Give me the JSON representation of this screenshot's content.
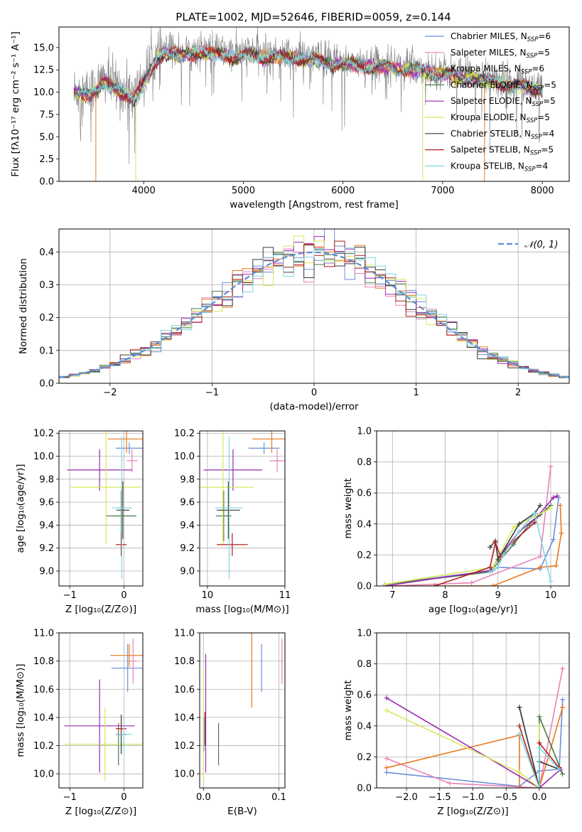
{
  "figure": {
    "title": "PLATE=1002, MJD=52646, FIBERID=0059, z=0.144"
  },
  "chart_data": [
    {
      "id": "spectrum",
      "type": "line",
      "title": "PLATE=1002, MJD=52646, FIBERID=0059, z=0.144",
      "xlabel": "wavelength [Angstrom, rest frame]",
      "ylabel": "Flux [fλ10⁻¹⁷ erg cm⁻² s⁻¹ A⁻¹]",
      "xlim": [
        3150,
        8270
      ],
      "ylim": [
        0,
        17.3
      ],
      "xticks": [
        4000,
        5000,
        6000,
        7000,
        8000
      ],
      "yticks": [
        0.0,
        2.5,
        5.0,
        7.5,
        10.0,
        12.5,
        15.0
      ],
      "legend_position": "right",
      "grid": false,
      "data_series": {
        "name": "data",
        "color": "#808080",
        "x": [
          3300,
          3450,
          3600,
          3750,
          3900,
          4000,
          4100,
          4200,
          4300,
          4400,
          4500,
          4600,
          4700,
          4800,
          4900,
          5000,
          5100,
          5200,
          5300,
          5400,
          5500,
          5600,
          5700,
          5800,
          5900,
          6000,
          6100,
          6200,
          6300,
          6400,
          6500,
          6600,
          6700,
          6800,
          6900,
          7000,
          7100,
          7200,
          7300,
          7400,
          7500,
          7600,
          7700,
          7800,
          7900,
          8000
        ],
        "y": [
          10.2,
          10.0,
          11.5,
          10.5,
          9.5,
          11.5,
          13.5,
          14.5,
          14.8,
          14.5,
          14.6,
          14.9,
          14.7,
          14.6,
          14.2,
          14.5,
          14.6,
          14.2,
          14.4,
          14.3,
          14.3,
          14.1,
          14.0,
          13.8,
          13.5,
          13.5,
          13.5,
          13.3,
          13.2,
          13.3,
          13.1,
          13.0,
          12.9,
          12.7,
          12.5,
          12.4,
          12.2,
          11.9,
          11.9,
          11.7,
          11.5,
          11.3,
          11.1,
          11.0,
          10.8,
          10.6
        ]
      },
      "series": [
        {
          "name": "Chabrier MILES, N_SSP=6",
          "legend": [
            "Chabrier MILES, N",
            "SSP",
            "=6"
          ],
          "color": "#6b8fd6"
        },
        {
          "name": "Salpeter MILES, N_SSP=5",
          "legend": [
            "Salpeter MILES, N",
            "SSP",
            "=5"
          ],
          "color": "#e882b9"
        },
        {
          "name": "Kroupa MILES, N_SSP=6",
          "legend": [
            "Kroupa MILES, N",
            "SSP",
            "=6"
          ],
          "color": "#e8791e"
        },
        {
          "name": "Chabrier ELODIE, N_SSP=5",
          "legend": [
            "Chabrier ELODIE, N",
            "SSP",
            "=5"
          ],
          "color": "#4b7a4a"
        },
        {
          "name": "Salpeter ELODIE, N_SSP=5",
          "legend": [
            "Salpeter ELODIE, N",
            "SSP",
            "=5"
          ],
          "color": "#9a29b0"
        },
        {
          "name": "Kroupa ELODIE, N_SSP=5",
          "legend": [
            "Kroupa ELODIE, N",
            "SSP",
            "=5"
          ],
          "color": "#d7e85a"
        },
        {
          "name": "Chabrier STELIB, N_SSP=4",
          "legend": [
            "Chabrier STELIB, N",
            "SSP",
            "=4"
          ],
          "color": "#3a3a3a"
        },
        {
          "name": "Salpeter STELIB, N_SSP=5",
          "legend": [
            "Salpeter STELIB, N",
            "SSP",
            "=5"
          ],
          "color": "#b01e1e"
        },
        {
          "name": "Kroupa STELIB, N_SSP=4",
          "legend": [
            "Kroupa STELIB, N",
            "SSP",
            "=4"
          ],
          "color": "#7fd6e0"
        }
      ],
      "model_spikes": [
        {
          "x": 3520,
          "color": "#e8791e"
        },
        {
          "x": 3920,
          "color": "#d7e85a"
        },
        {
          "x": 6800,
          "color": "#d7e85a"
        },
        {
          "x": 7420,
          "color": "#e8791e"
        }
      ]
    },
    {
      "id": "residuals",
      "type": "histogram",
      "xlabel": "(data-model)/error",
      "ylabel": "Normed distribution",
      "xlim": [
        -2.5,
        2.5
      ],
      "ylim": [
        0,
        0.47
      ],
      "xticks": [
        -2,
        -1,
        0,
        1,
        2
      ],
      "yticks": [
        0.0,
        0.1,
        0.2,
        0.3,
        0.4
      ],
      "grid": true,
      "legend": "𝒩(0, 1)",
      "legend_position": "top-right",
      "bin_width": 0.1,
      "bins_start": -2.5,
      "gaussian": {
        "mu": 0,
        "sigma": 1,
        "color": "#5a8fd6"
      },
      "hist_colors": [
        "#6b8fd6",
        "#e882b9",
        "#e8791e",
        "#4b7a4a",
        "#9a29b0",
        "#d7e85a",
        "#3a3a3a",
        "#b01e1e",
        "#7fd6e0"
      ]
    },
    {
      "id": "age-vs-Z",
      "type": "errorbar",
      "xlabel": "Z [log₁₀(Z/Z⊙)]",
      "ylabel": "age  [log₁₀(age/yr)]",
      "xlim": [
        -1.2,
        0.35
      ],
      "ylim": [
        8.87,
        10.22
      ],
      "xticks": [
        -1,
        0
      ],
      "yticks": [
        9.0,
        9.2,
        9.4,
        9.6,
        9.8,
        10.0,
        10.2
      ],
      "grid": true,
      "points": [
        {
          "color": "#6b8fd6",
          "x": 0.1,
          "xerr": 0.25,
          "y": 10.07,
          "yerr": 0.05
        },
        {
          "color": "#e882b9",
          "x": 0.15,
          "xerr": 0.1,
          "y": 9.96,
          "yerr": 0.1
        },
        {
          "color": "#e8791e",
          "x": 0.05,
          "xerr": 0.35,
          "y": 10.15,
          "yerr": 0.12
        },
        {
          "color": "#4b7a4a",
          "x": -0.05,
          "xerr": 0.28,
          "y": 9.48,
          "yerr": 0.22
        },
        {
          "color": "#9a29b0",
          "x": -0.45,
          "xerr": 0.6,
          "y": 9.88,
          "yerr": 0.18
        },
        {
          "color": "#d7e85a",
          "x": -0.33,
          "xerr": 0.65,
          "y": 9.73,
          "yerr": 0.5
        },
        {
          "color": "#3a3a3a",
          "x": -0.02,
          "xerr": 0.12,
          "y": 9.53,
          "yerr": 0.25
        },
        {
          "color": "#b01e1e",
          "x": -0.05,
          "xerr": 0.1,
          "y": 9.23,
          "yerr": 0.1
        },
        {
          "color": "#7fd6e0",
          "x": -0.04,
          "xerr": 0.18,
          "y": 9.55,
          "yerr": 0.62
        }
      ]
    },
    {
      "id": "age-vs-mass",
      "type": "errorbar",
      "xlabel": "mass [log₁₀(M/M⊙)]",
      "xlim": [
        9.9,
        11.0
      ],
      "ylim": [
        8.87,
        10.22
      ],
      "xticks": [
        10,
        11
      ],
      "yticks": [
        9.0,
        9.2,
        9.4,
        9.6,
        9.8,
        10.0,
        10.2
      ],
      "grid": true,
      "points": [
        {
          "color": "#6b8fd6",
          "x": 10.73,
          "xerr": 0.2,
          "y": 10.07,
          "yerr": 0.05
        },
        {
          "color": "#e882b9",
          "x": 10.9,
          "xerr": 0.1,
          "y": 9.96,
          "yerr": 0.1
        },
        {
          "color": "#e8791e",
          "x": 10.83,
          "xerr": 0.25,
          "y": 10.15,
          "yerr": 0.12
        },
        {
          "color": "#4b7a4a",
          "x": 10.21,
          "xerr": 0.1,
          "y": 9.48,
          "yerr": 0.22
        },
        {
          "color": "#9a29b0",
          "x": 10.33,
          "xerr": 0.38,
          "y": 9.88,
          "yerr": 0.18
        },
        {
          "color": "#d7e85a",
          "x": 10.2,
          "xerr": 0.4,
          "y": 9.73,
          "yerr": 0.5
        },
        {
          "color": "#3a3a3a",
          "x": 10.27,
          "xerr": 0.15,
          "y": 9.53,
          "yerr": 0.25
        },
        {
          "color": "#b01e1e",
          "x": 10.32,
          "xerr": 0.2,
          "y": 9.23,
          "yerr": 0.1
        },
        {
          "color": "#7fd6e0",
          "x": 10.28,
          "xerr": 0.18,
          "y": 9.55,
          "yerr": 0.62
        }
      ]
    },
    {
      "id": "weight-vs-age",
      "type": "line",
      "xlabel": "age  [log₁₀(age/yr)]",
      "ylabel": "mass weight",
      "xlim": [
        6.7,
        10.35
      ],
      "ylim": [
        0,
        1.0
      ],
      "xticks": [
        7,
        8,
        9,
        10
      ],
      "yticks": [
        0.0,
        0.2,
        0.4,
        0.6,
        0.8,
        1.0
      ],
      "grid": true,
      "series": [
        {
          "color": "#6b8fd6",
          "x": [
            6.85,
            8.9,
            9.0,
            9.8,
            10.05,
            10.15
          ],
          "y": [
            0.01,
            0.1,
            0.12,
            0.11,
            0.3,
            0.57
          ]
        },
        {
          "color": "#e882b9",
          "x": [
            6.9,
            8.5,
            9.8,
            10.0
          ],
          "y": [
            0.0,
            0.02,
            0.19,
            0.77
          ]
        },
        {
          "color": "#e8791e",
          "x": [
            6.9,
            8.9,
            9.8,
            10.1,
            10.2,
            10.18
          ],
          "y": [
            0.0,
            0.0,
            0.12,
            0.13,
            0.34,
            0.52
          ]
        },
        {
          "color": "#4b7a4a",
          "x": [
            6.85,
            8.85,
            9.3,
            9.6,
            9.8,
            10.0
          ],
          "y": [
            0.01,
            0.09,
            0.27,
            0.4,
            0.46,
            0.52
          ]
        },
        {
          "color": "#9a29b0",
          "x": [
            6.85,
            8.85,
            9.05,
            9.4,
            9.75,
            10.05,
            10.12
          ],
          "y": [
            0.0,
            0.1,
            0.2,
            0.35,
            0.45,
            0.57,
            0.58
          ]
        },
        {
          "color": "#d7e85a",
          "x": [
            6.85,
            8.9,
            9.3,
            9.7,
            10.0
          ],
          "y": [
            0.01,
            0.12,
            0.38,
            0.45,
            0.5
          ]
        },
        {
          "color": "#3a3a3a",
          "x": [
            8.85,
            8.95,
            9.0,
            9.4,
            9.7,
            9.8
          ],
          "y": [
            0.25,
            0.29,
            0.17,
            0.4,
            0.47,
            0.52
          ]
        },
        {
          "color": "#b01e1e",
          "x": [
            7.8,
            8.85,
            8.95,
            9.05,
            9.3,
            9.7
          ],
          "y": [
            0.0,
            0.12,
            0.28,
            0.19,
            0.29,
            0.41
          ]
        },
        {
          "color": "#7fd6e0",
          "x": [
            8.85,
            9.0,
            9.1,
            9.4,
            9.7,
            10.0
          ],
          "y": [
            0.09,
            0.12,
            0.2,
            0.35,
            0.47,
            0.03
          ]
        }
      ]
    },
    {
      "id": "mass-vs-Z",
      "type": "errorbar",
      "xlabel": "Z [log₁₀(Z/Z⊙)]",
      "ylabel": "mass [log₁₀(M/M⊙)]",
      "xlim": [
        -1.2,
        0.35
      ],
      "ylim": [
        9.9,
        11.0
      ],
      "xticks": [
        -1,
        0
      ],
      "yticks": [
        10.0,
        10.2,
        10.4,
        10.6,
        10.8,
        11.0
      ],
      "grid": true,
      "points": [
        {
          "color": "#6b8fd6",
          "x": 0.07,
          "xerr": 0.3,
          "y": 10.75,
          "yerr": 0.17
        },
        {
          "color": "#e882b9",
          "x": 0.17,
          "xerr": 0.08,
          "y": 10.8,
          "yerr": 0.16
        },
        {
          "color": "#e8791e",
          "x": 0.1,
          "xerr": 0.35,
          "y": 10.84,
          "yerr": 0.08
        },
        {
          "color": "#4b7a4a",
          "x": -0.1,
          "xerr": 0.4,
          "y": 10.21,
          "yerr": 0.15
        },
        {
          "color": "#9a29b0",
          "x": -0.45,
          "xerr": 0.65,
          "y": 10.34,
          "yerr": 0.33
        },
        {
          "color": "#d7e85a",
          "x": -0.35,
          "xerr": 0.75,
          "y": 10.21,
          "yerr": 0.26
        },
        {
          "color": "#3a3a3a",
          "x": -0.05,
          "xerr": 0.1,
          "y": 10.28,
          "yerr": 0.14
        },
        {
          "color": "#b01e1e",
          "x": -0.05,
          "xerr": 0.1,
          "y": 10.32,
          "yerr": 0.05
        },
        {
          "color": "#7fd6e0",
          "x": 0.0,
          "xerr": 0.15,
          "y": 10.28,
          "yerr": 0.12
        }
      ]
    },
    {
      "id": "mass-vs-ebv",
      "type": "errorbar",
      "xlabel": "E(B-V)",
      "xlim": [
        -0.005,
        0.108
      ],
      "ylim": [
        9.9,
        11.0
      ],
      "xticks": [
        0.0,
        0.1
      ],
      "yticks": [
        10.0,
        10.2,
        10.4,
        10.6,
        10.8,
        11.0
      ],
      "grid": true,
      "points": [
        {
          "color": "#6b8fd6",
          "x": 0.077,
          "y": 10.75,
          "yerr": 0.17
        },
        {
          "color": "#e882b9",
          "x": 0.104,
          "y": 10.8,
          "yerr": 0.16
        },
        {
          "color": "#e8791e",
          "x": 0.064,
          "y": 10.75,
          "yerr": 0.28
        },
        {
          "color": "#4b7a4a",
          "x": 0.02,
          "y": 10.21,
          "yerr": 0.15
        },
        {
          "color": "#9a29b0",
          "x": 0.003,
          "y": 10.43,
          "yerr": 0.42
        },
        {
          "color": "#d7e85a",
          "x": 0.0,
          "y": 10.35,
          "yerr": 0.4
        },
        {
          "color": "#3a3a3a",
          "x": 0.001,
          "y": 10.28,
          "yerr": 0.12
        },
        {
          "color": "#b01e1e",
          "x": 0.002,
          "y": 10.32,
          "yerr": 0.12
        },
        {
          "color": "#7fd6e0",
          "x": 0.001,
          "y": 10.28,
          "yerr": 0.12
        }
      ]
    },
    {
      "id": "weight-vs-Z",
      "type": "line",
      "xlabel": "Z [log₁₀(Z/Z⊙)]",
      "ylabel": "mass weight",
      "xlim": [
        -2.45,
        0.45
      ],
      "ylim": [
        0,
        1.0
      ],
      "xticks": [
        -2.0,
        -1.5,
        -1.0,
        -0.5,
        0.0
      ],
      "yticks": [
        0.0,
        0.2,
        0.4,
        0.6,
        0.8,
        1.0
      ],
      "grid": true,
      "series": [
        {
          "color": "#6b8fd6",
          "x": [
            -2.3,
            -0.3,
            0.0,
            0.3,
            0.35
          ],
          "y": [
            0.1,
            0.01,
            0.11,
            0.12,
            0.57
          ]
        },
        {
          "color": "#e882b9",
          "x": [
            -2.3,
            -1.35,
            0.0,
            0.35
          ],
          "y": [
            0.19,
            0.03,
            0.0,
            0.77
          ]
        },
        {
          "color": "#e8791e",
          "x": [
            -2.3,
            -0.3,
            -0.3,
            0.0,
            0.35
          ],
          "y": [
            0.13,
            0.34,
            0.0,
            0.0,
            0.52
          ]
        },
        {
          "color": "#4b7a4a",
          "x": [
            -0.3,
            0.0,
            0.0,
            0.35
          ],
          "y": [
            0.52,
            0.0,
            0.46,
            0.09
          ]
        },
        {
          "color": "#9a29b0",
          "x": [
            -2.3,
            0.0,
            0.32
          ],
          "y": [
            0.58,
            0.0,
            0.12
          ]
        },
        {
          "color": "#d7e85a",
          "x": [
            -2.3,
            -0.3,
            0.0,
            0.0
          ],
          "y": [
            0.5,
            0.1,
            0.0,
            0.4
          ]
        },
        {
          "color": "#3a3a3a",
          "x": [
            -0.3,
            0.0,
            0.0,
            0.3
          ],
          "y": [
            0.52,
            0.0,
            0.17,
            0.12
          ]
        },
        {
          "color": "#b01e1e",
          "x": [
            -0.3,
            0.0,
            0.0,
            0.3
          ],
          "y": [
            0.4,
            0.0,
            0.29,
            0.13
          ]
        },
        {
          "color": "#7fd6e0",
          "x": [
            -0.3,
            0.0,
            0.0,
            0.3
          ],
          "y": [
            0.35,
            0.0,
            0.26,
            0.12
          ]
        }
      ]
    }
  ]
}
